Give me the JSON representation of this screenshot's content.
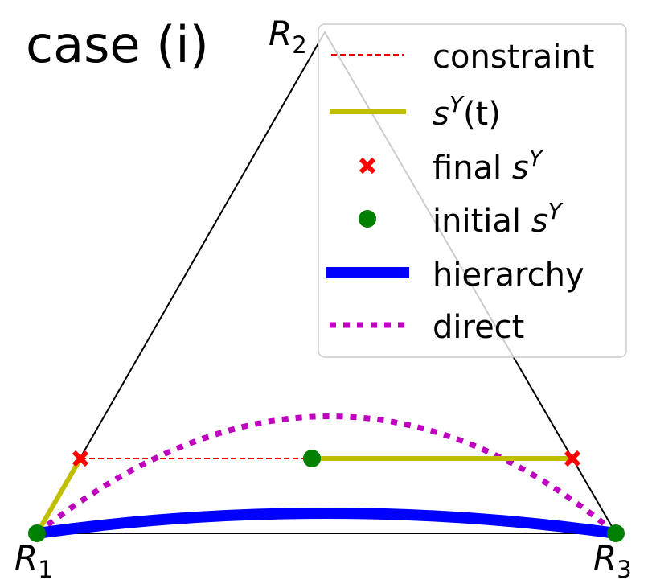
{
  "title": "case (i)",
  "vertices": [
    {
      "base": "R",
      "sub": "1"
    },
    {
      "base": "R",
      "sub": "2"
    },
    {
      "base": "R",
      "sub": "3"
    }
  ],
  "legend": [
    {
      "main": "constraint"
    },
    {
      "main": "s",
      "sup": "Y",
      "after": "(t)"
    },
    {
      "main": "final ",
      "math": "s",
      "sup": "Y"
    },
    {
      "main": "initial ",
      "math": "s",
      "sup": "Y"
    },
    {
      "main": "hierarchy"
    },
    {
      "main": "direct"
    }
  ]
}
